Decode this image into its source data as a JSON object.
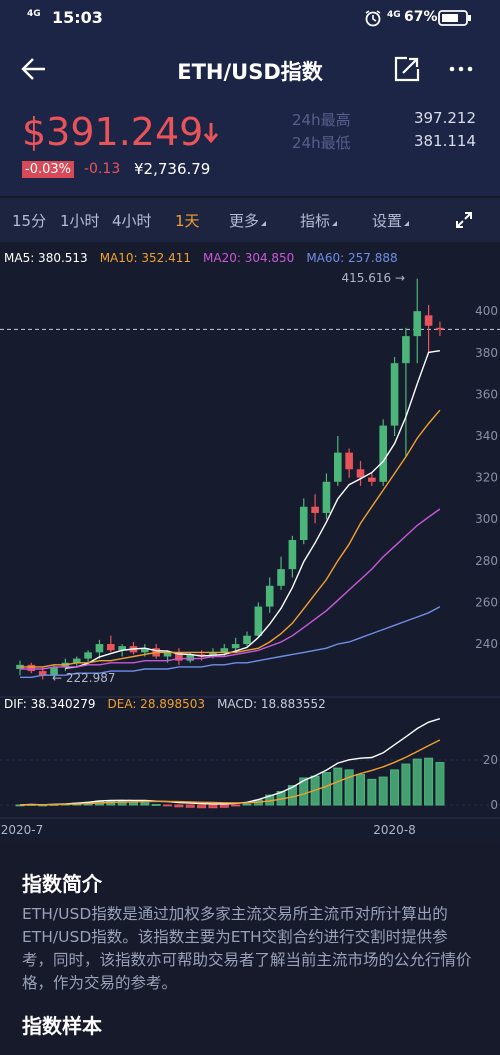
{
  "status_bar": {
    "network_left": "4G",
    "time": "15:03",
    "network_right": "4G",
    "battery": "67%"
  },
  "header": {
    "title": "ETH/USD指数"
  },
  "price": {
    "last": "$391.249",
    "change_pct": "-0.03%",
    "change": "-0.13",
    "cny": "¥2,736.79",
    "high_label": "24h最高",
    "high": "397.212",
    "low_label": "24h最低",
    "low": "381.114"
  },
  "tabs": [
    "15分",
    "1小时",
    "4小时",
    "1天",
    "更多",
    "指标",
    "设置"
  ],
  "active_tab": "1天",
  "chart_data": [
    {
      "type": "candlestick",
      "categories": [
        "2020-7",
        null,
        null,
        null,
        null,
        null,
        null,
        null,
        null,
        null,
        null,
        null,
        null,
        null,
        null,
        null,
        null,
        null,
        null,
        null,
        null,
        null,
        null,
        null,
        null,
        null,
        null,
        null,
        null,
        null,
        null,
        null,
        null,
        "2020-8",
        null,
        null,
        null,
        null
      ],
      "open": [
        228,
        230,
        227,
        225,
        229,
        231,
        233,
        236,
        240,
        237,
        239,
        236,
        238,
        234,
        236,
        232,
        235,
        234,
        236,
        238,
        240,
        244,
        258,
        268,
        276,
        290,
        306,
        303,
        318,
        332,
        324,
        320,
        318,
        345,
        375,
        388,
        398,
        392
      ],
      "high": [
        232,
        231,
        229,
        230,
        233,
        234,
        237,
        242,
        244,
        240,
        241,
        240,
        240,
        237,
        238,
        236,
        237,
        238,
        240,
        243,
        246,
        260,
        272,
        282,
        292,
        310,
        312,
        322,
        340,
        334,
        328,
        322,
        348,
        378,
        392,
        415.616,
        403,
        395
      ],
      "low": [
        225,
        226,
        222.987,
        224,
        227,
        229,
        231,
        233,
        236,
        234,
        235,
        234,
        233,
        231,
        230,
        231,
        232,
        233,
        234,
        236,
        239,
        243,
        255,
        266,
        272,
        288,
        298,
        300,
        316,
        320,
        316,
        316,
        316,
        340,
        330,
        375,
        380,
        388
      ],
      "close": [
        230,
        227,
        225,
        229,
        231,
        233,
        236,
        240,
        237,
        239,
        236,
        238,
        234,
        236,
        232,
        235,
        234,
        236,
        238,
        240,
        244,
        258,
        268,
        276,
        290,
        306,
        303,
        318,
        332,
        324,
        320,
        318,
        345,
        375,
        388,
        400,
        393,
        391.249
      ],
      "up_color": "#4cb57a",
      "down_color": "#e8545a",
      "series": [
        {
          "name": "MA5: 380.513",
          "color": "#ffffff",
          "values": [
            null,
            null,
            null,
            null,
            228.4,
            229,
            230.8,
            233.8,
            235.4,
            237,
            237.6,
            238,
            236.8,
            236.6,
            235.2,
            235,
            234.2,
            234.6,
            235,
            236.6,
            238.4,
            243.2,
            249.6,
            257.2,
            267.2,
            279.6,
            288.6,
            298.6,
            309.8,
            316.6,
            319.4,
            322.4,
            327.8,
            336.4,
            349.2,
            365.2,
            380.2,
            381
          ]
        },
        {
          "name": "MA10: 352.411",
          "color": "#f0a030",
          "values": [
            229,
            229,
            229,
            230,
            230,
            231,
            231,
            232,
            232,
            233,
            234,
            235,
            236,
            236,
            236,
            236,
            236,
            236,
            236,
            236,
            237,
            238,
            241,
            245,
            250,
            257,
            264,
            271,
            280,
            288,
            298,
            306,
            314,
            322,
            330,
            339,
            346,
            352.4
          ]
        },
        {
          "name": "MA20: 304.850",
          "color": "#c85ad8",
          "values": [
            228,
            228,
            228,
            229,
            229,
            229,
            230,
            230,
            231,
            231,
            231,
            232,
            232,
            232,
            233,
            233,
            233,
            234,
            234,
            235,
            236,
            237,
            239,
            241,
            244,
            248,
            252,
            256,
            261,
            266,
            271,
            276,
            282,
            287,
            292,
            297,
            301,
            304.9
          ]
        },
        {
          "name": "MA60: 257.888",
          "color": "#6f8ee6",
          "values": [
            224,
            224,
            225,
            225,
            225,
            226,
            226,
            226,
            227,
            227,
            227,
            228,
            228,
            228,
            229,
            229,
            229,
            230,
            230,
            231,
            231,
            232,
            233,
            234,
            235,
            236,
            237,
            238,
            240,
            241,
            243,
            245,
            247,
            249,
            251,
            253,
            255,
            257.9
          ]
        }
      ],
      "last_price": 391.249,
      "annotations": [
        "415.616 →",
        "← 222.987"
      ],
      "ylim": [
        215.5,
        427
      ],
      "yticks": [
        240,
        260,
        280,
        300,
        320,
        340,
        360,
        380,
        400
      ],
      "grid": false
    },
    {
      "type": "macd",
      "series": [
        {
          "name": "DIF: 38.340279",
          "color": "#ffffff",
          "style": "line",
          "values": [
            0,
            0.2,
            0.1,
            0.3,
            0.5,
            0.8,
            1.2,
            1.8,
            2,
            2.1,
            2,
            2,
            1.7,
            1.5,
            1.1,
            0.9,
            0.6,
            0.5,
            0.5,
            0.7,
            1.2,
            2.4,
            4,
            5.6,
            7.9,
            10.9,
            13,
            15.5,
            18.6,
            20.1,
            20.8,
            21.1,
            23.2,
            26.8,
            30.3,
            34,
            36.8,
            38.34
          ]
        },
        {
          "name": "DEA: 28.898503",
          "color": "#f0a030",
          "style": "line",
          "values": [
            0,
            0.1,
            0.1,
            0.2,
            0.3,
            0.4,
            0.6,
            0.9,
            1.1,
            1.3,
            1.4,
            1.5,
            1.6,
            1.6,
            1.5,
            1.4,
            1.2,
            1.1,
            1,
            0.9,
            1,
            1.3,
            1.8,
            2.6,
            3.6,
            4.9,
            6.6,
            8.3,
            10.4,
            12.3,
            14,
            15.4,
            17,
            19,
            21.2,
            23.8,
            26.4,
            28.9
          ]
        },
        {
          "name": "MACD: 18.883552",
          "color": "#4cb57a",
          "negative_color": "#e8545a",
          "style": "bar",
          "values": [
            0,
            0.2,
            0,
            0.2,
            0.4,
            0.8,
            1.2,
            1.8,
            1.8,
            1.6,
            1.2,
            1,
            0.2,
            -0.2,
            -0.8,
            -1,
            -1.2,
            -1.2,
            -1,
            -0.4,
            0.4,
            2.2,
            4.4,
            6,
            8.6,
            12,
            12.8,
            14.4,
            16.4,
            15.6,
            13.6,
            11.4,
            12.4,
            15.6,
            18.2,
            20.4,
            20.8,
            18.88
          ]
        }
      ],
      "ylim": [
        -5,
        45
      ],
      "yticks": [
        0,
        20
      ]
    }
  ],
  "intro": {
    "title": "指数简介",
    "text": "ETH/USD指数是通过加权多家主流交易所主流币对所计算出的ETH/USD指数。该指数主要为ETH交割合约进行交割时提供参考，同时，该指数亦可帮助交易者了解当前主流市场的公允行情价格，作为交易的参考。"
  },
  "sample": {
    "title": "指数样本"
  }
}
